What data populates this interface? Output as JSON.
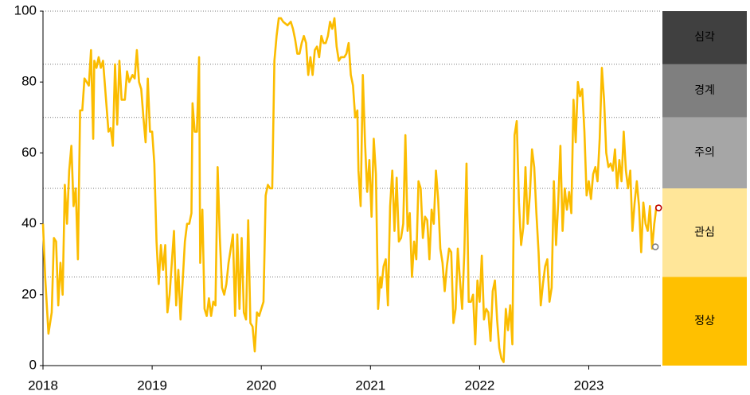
{
  "chart_data": {
    "type": "line",
    "color": "#fbbc00",
    "xlim": [
      2018,
      2023.66
    ],
    "xticks": [
      2018,
      2019,
      2020,
      2021,
      2022,
      2023
    ],
    "ylim": [
      0,
      100
    ],
    "yticks": [
      0,
      20,
      40,
      60,
      80,
      100
    ],
    "bands": [
      {
        "label": "심각",
        "from": 85,
        "to": 100,
        "color": "#404040"
      },
      {
        "label": "경계",
        "from": 70,
        "to": 85,
        "color": "#7f7f7f"
      },
      {
        "label": "주의",
        "from": 50,
        "to": 70,
        "color": "#a6a6a6"
      },
      {
        "label": "관심",
        "from": 25,
        "to": 50,
        "color": "#ffe699"
      },
      {
        "label": "정상",
        "from": 0,
        "to": 25,
        "color": "#ffc000"
      }
    ],
    "markers": [
      {
        "x": 2023.64,
        "value": 44.5,
        "color": "#c00000"
      },
      {
        "x": 2023.61,
        "value": 33.5,
        "color": "#808080"
      }
    ],
    "x": [
      2018.0,
      2018.02,
      2018.05,
      2018.08,
      2018.1,
      2018.12,
      2018.14,
      2018.16,
      2018.18,
      2018.2,
      2018.22,
      2018.24,
      2018.26,
      2018.28,
      2018.3,
      2018.32,
      2018.34,
      2018.36,
      2018.38,
      2018.42,
      2018.44,
      2018.46,
      2018.47,
      2018.49,
      2018.51,
      2018.53,
      2018.55,
      2018.58,
      2018.6,
      2018.62,
      2018.64,
      2018.66,
      2018.68,
      2018.7,
      2018.72,
      2018.75,
      2018.77,
      2018.79,
      2018.82,
      2018.84,
      2018.86,
      2018.88,
      2018.9,
      2018.92,
      2018.94,
      2018.96,
      2018.98,
      2019.0,
      2019.02,
      2019.04,
      2019.06,
      2019.08,
      2019.1,
      2019.12,
      2019.14,
      2019.16,
      2019.18,
      2019.2,
      2019.22,
      2019.24,
      2019.26,
      2019.28,
      2019.3,
      2019.32,
      2019.34,
      2019.36,
      2019.37,
      2019.39,
      2019.41,
      2019.43,
      2019.44,
      2019.46,
      2019.48,
      2019.5,
      2019.52,
      2019.54,
      2019.56,
      2019.58,
      2019.6,
      2019.62,
      2019.64,
      2019.66,
      2019.68,
      2019.7,
      2019.72,
      2019.74,
      2019.76,
      2019.78,
      2019.8,
      2019.82,
      2019.84,
      2019.86,
      2019.88,
      2019.9,
      2019.92,
      2019.94,
      2019.96,
      2019.98,
      2020.0,
      2020.02,
      2020.04,
      2020.06,
      2020.08,
      2020.1,
      2020.12,
      2020.14,
      2020.16,
      2020.18,
      2020.2,
      2020.24,
      2020.27,
      2020.29,
      2020.31,
      2020.33,
      2020.35,
      2020.37,
      2020.39,
      2020.41,
      2020.43,
      2020.45,
      2020.47,
      2020.49,
      2020.51,
      2020.53,
      2020.55,
      2020.57,
      2020.59,
      2020.61,
      2020.63,
      2020.65,
      2020.67,
      2020.69,
      2020.71,
      2020.73,
      2020.76,
      2020.78,
      2020.8,
      2020.82,
      2020.84,
      2020.86,
      2020.88,
      2020.89,
      2020.91,
      2020.93,
      2020.95,
      2020.97,
      2020.99,
      2021.01,
      2021.03,
      2021.05,
      2021.07,
      2021.09,
      2021.1,
      2021.12,
      2021.14,
      2021.16,
      2021.18,
      2021.2,
      2021.22,
      2021.24,
      2021.26,
      2021.28,
      2021.3,
      2021.32,
      2021.34,
      2021.36,
      2021.38,
      2021.4,
      2021.42,
      2021.44,
      2021.46,
      2021.48,
      2021.5,
      2021.52,
      2021.54,
      2021.56,
      2021.58,
      2021.6,
      2021.62,
      2021.64,
      2021.66,
      2021.68,
      2021.7,
      2021.72,
      2021.74,
      2021.76,
      2021.78,
      2021.8,
      2021.82,
      2021.84,
      2021.86,
      2021.88,
      2021.9,
      2021.92,
      2021.94,
      2021.96,
      2021.98,
      2022.0,
      2022.02,
      2022.04,
      2022.06,
      2022.08,
      2022.1,
      2022.12,
      2022.14,
      2022.16,
      2022.18,
      2022.2,
      2022.22,
      2022.24,
      2022.26,
      2022.28,
      2022.3,
      2022.32,
      2022.34,
      2022.36,
      2022.38,
      2022.4,
      2022.42,
      2022.44,
      2022.46,
      2022.48,
      2022.5,
      2022.52,
      2022.54,
      2022.56,
      2022.58,
      2022.6,
      2022.62,
      2022.64,
      2022.66,
      2022.68,
      2022.7,
      2022.72,
      2022.74,
      2022.76,
      2022.78,
      2022.8,
      2022.82,
      2022.84,
      2022.86,
      2022.88,
      2022.9,
      2022.92,
      2022.94,
      2022.96,
      2022.98,
      2023.0,
      2023.02,
      2023.04,
      2023.06,
      2023.08,
      2023.1,
      2023.12,
      2023.14,
      2023.16,
      2023.18,
      2023.2,
      2023.22,
      2023.24,
      2023.26,
      2023.28,
      2023.3,
      2023.32,
      2023.34,
      2023.36,
      2023.38,
      2023.4,
      2023.42,
      2023.44,
      2023.46,
      2023.48,
      2023.5,
      2023.52,
      2023.54,
      2023.56,
      2023.58,
      2023.6,
      2023.62,
      2023.64
    ],
    "values": [
      40,
      25,
      9,
      15,
      36,
      35,
      17,
      29,
      20,
      51,
      40,
      55,
      62,
      45,
      50,
      30,
      72,
      72,
      81,
      79,
      89,
      64,
      86,
      84,
      87,
      84,
      86,
      74,
      66,
      67,
      62,
      85,
      68,
      86,
      75,
      75,
      83,
      80,
      82,
      81,
      89,
      80,
      78,
      70,
      63,
      81,
      66,
      66,
      57,
      35,
      23,
      34,
      27,
      34,
      15,
      20,
      29,
      38,
      17,
      27,
      13,
      24,
      35,
      40,
      40,
      43,
      74,
      66,
      66,
      87,
      29,
      44,
      16,
      14,
      19,
      14,
      18,
      17,
      56,
      36,
      22,
      20,
      23,
      29,
      33,
      37,
      14,
      37,
      16,
      36,
      15,
      13,
      41,
      12,
      11,
      4,
      15,
      14,
      16,
      18,
      48,
      51,
      50,
      50,
      86,
      93,
      98,
      98,
      97,
      96,
      97,
      95,
      92,
      88,
      88,
      91,
      93,
      91,
      82,
      87,
      82,
      89,
      90,
      87,
      93,
      91,
      91,
      93,
      97,
      95,
      98,
      90,
      86,
      87,
      87,
      88,
      91,
      82,
      79,
      70,
      72,
      55,
      45,
      82,
      63,
      49,
      58,
      42,
      64,
      54,
      16,
      25,
      22,
      28,
      30,
      17,
      45,
      55,
      38,
      53,
      35,
      36,
      40,
      65,
      38,
      43,
      25,
      35,
      30,
      52,
      50,
      36,
      42,
      41,
      30,
      44,
      40,
      55,
      47,
      33,
      29,
      21,
      28,
      33,
      32,
      12,
      16,
      33,
      24,
      16,
      32,
      57,
      18,
      18,
      20,
      6,
      24,
      18,
      31,
      13,
      16,
      15,
      7,
      21,
      24,
      13,
      5,
      2,
      1,
      16,
      10,
      17,
      6,
      65,
      69,
      46,
      34,
      39,
      56,
      40,
      48,
      61,
      56,
      43,
      32,
      17,
      23,
      28,
      30,
      18,
      22,
      52,
      34,
      46,
      62,
      38,
      50,
      44,
      49,
      43,
      75,
      63,
      80,
      76,
      78,
      66,
      48,
      52,
      47,
      54,
      56,
      52,
      64,
      84,
      75,
      60,
      56,
      57,
      55,
      61,
      50,
      58,
      52,
      66,
      55,
      50,
      55,
      38,
      46,
      52,
      45,
      32,
      46,
      40,
      38,
      45,
      33,
      40,
      45,
      44
    ]
  }
}
